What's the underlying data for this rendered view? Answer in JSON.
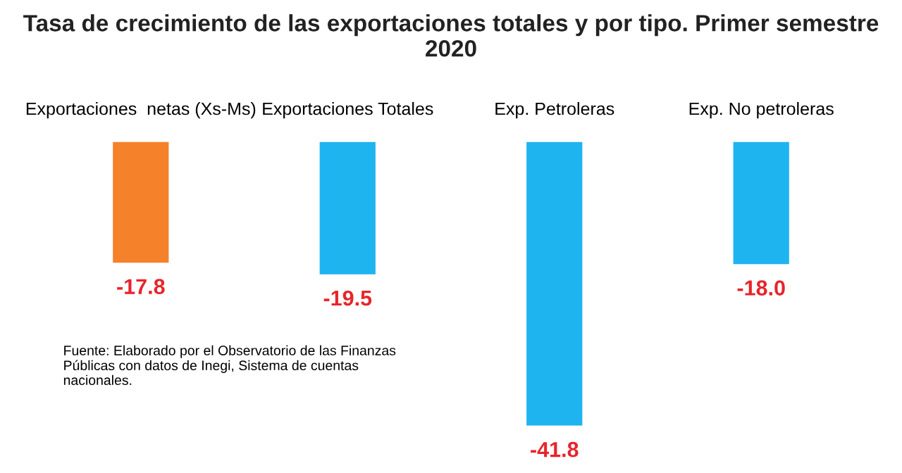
{
  "chart_data": {
    "type": "bar",
    "title": "Tasa de crecimiento de las exportaciones totales y por tipo. Primer semestre\n2020",
    "categories": [
      "Exportaciones  netas (Xs-Ms)",
      "Exportaciones Totales",
      "Exp. Petroleras",
      "Exp. No petroleras"
    ],
    "values": [
      -17.8,
      -19.5,
      -41.8,
      -18.0
    ],
    "value_labels": [
      "-17.8",
      "-19.5",
      "-41.8",
      "-18.0"
    ],
    "colors": [
      "#f5812b",
      "#1eb4f0",
      "#1eb4f0",
      "#1eb4f0"
    ],
    "annotations": [
      "Fuente: Elaborado por el Observatorio de las Finanzas\nPúblicas con datos de Inegi, Sistema de cuentas\nnacionales."
    ],
    "grid": false,
    "legend": false
  }
}
